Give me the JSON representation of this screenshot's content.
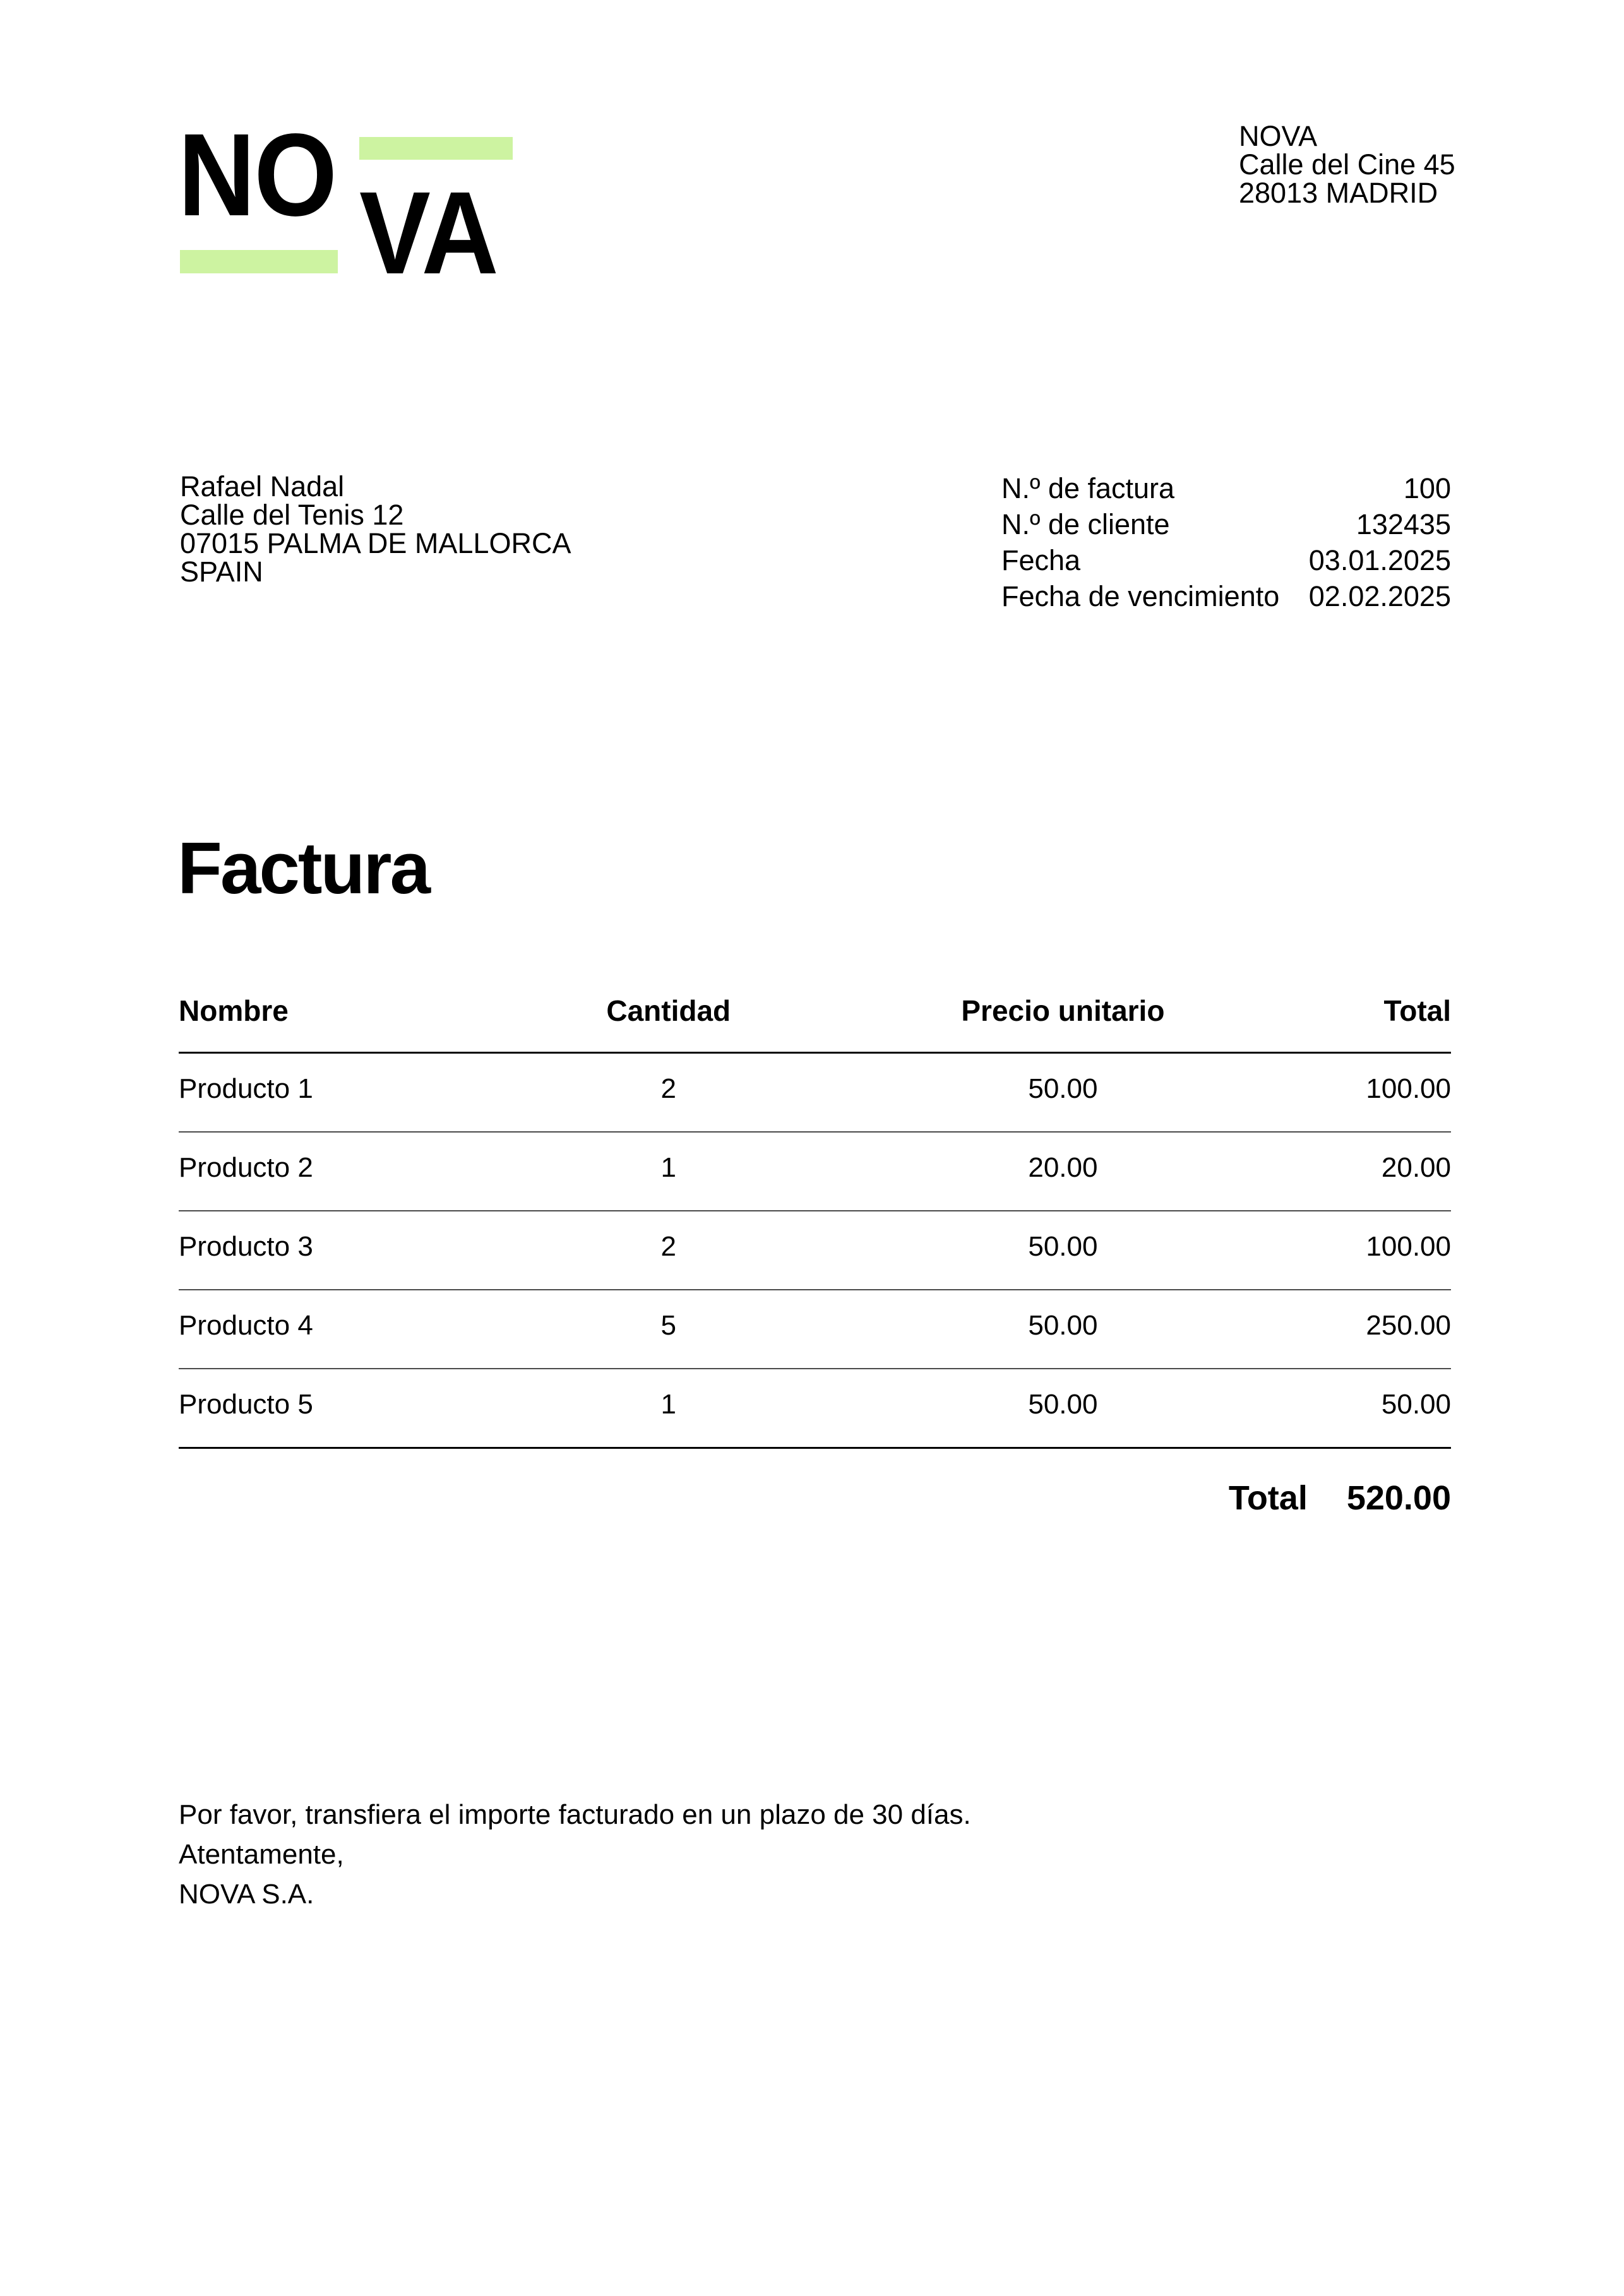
{
  "colors": {
    "accent": "#cdf3a1",
    "rule_strong": "#000000",
    "rule_light": "#4a4a4a"
  },
  "logo": {
    "part1": "NO",
    "part2": "VA"
  },
  "company": {
    "name": "NOVA",
    "street": "Calle del Cine 45",
    "city": "28013 MADRID"
  },
  "recipient": {
    "lines": [
      "Rafael Nadal",
      "Calle del Tenis 12",
      "07015 PALMA DE MALLORCA",
      "SPAIN"
    ]
  },
  "meta": {
    "rows": [
      {
        "label": "N.º de factura",
        "value": "100"
      },
      {
        "label": "N.º de cliente",
        "value": "132435"
      },
      {
        "label": "Fecha",
        "value": "03.01.2025"
      },
      {
        "label": "Fecha de vencimiento",
        "value": "02.02.2025"
      }
    ]
  },
  "title": "Factura",
  "table": {
    "headers": [
      "Nombre",
      "Cantidad",
      "Precio unitario",
      "Total"
    ],
    "rows": [
      {
        "name": "Producto 1",
        "qty": "2",
        "unit": "50.00",
        "total": "100.00"
      },
      {
        "name": "Producto 2",
        "qty": "1",
        "unit": "20.00",
        "total": "20.00"
      },
      {
        "name": "Producto 3",
        "qty": "2",
        "unit": "50.00",
        "total": "100.00"
      },
      {
        "name": "Producto 4",
        "qty": "5",
        "unit": "50.00",
        "total": "250.00"
      },
      {
        "name": "Producto 5",
        "qty": "1",
        "unit": "50.00",
        "total": "50.00"
      }
    ],
    "total_label": "Total",
    "total_value": "520.00"
  },
  "footer": {
    "lines": [
      "Por favor, transfiera el importe facturado en un plazo de 30 días.",
      "Atentamente,",
      "NOVA S.A."
    ]
  }
}
